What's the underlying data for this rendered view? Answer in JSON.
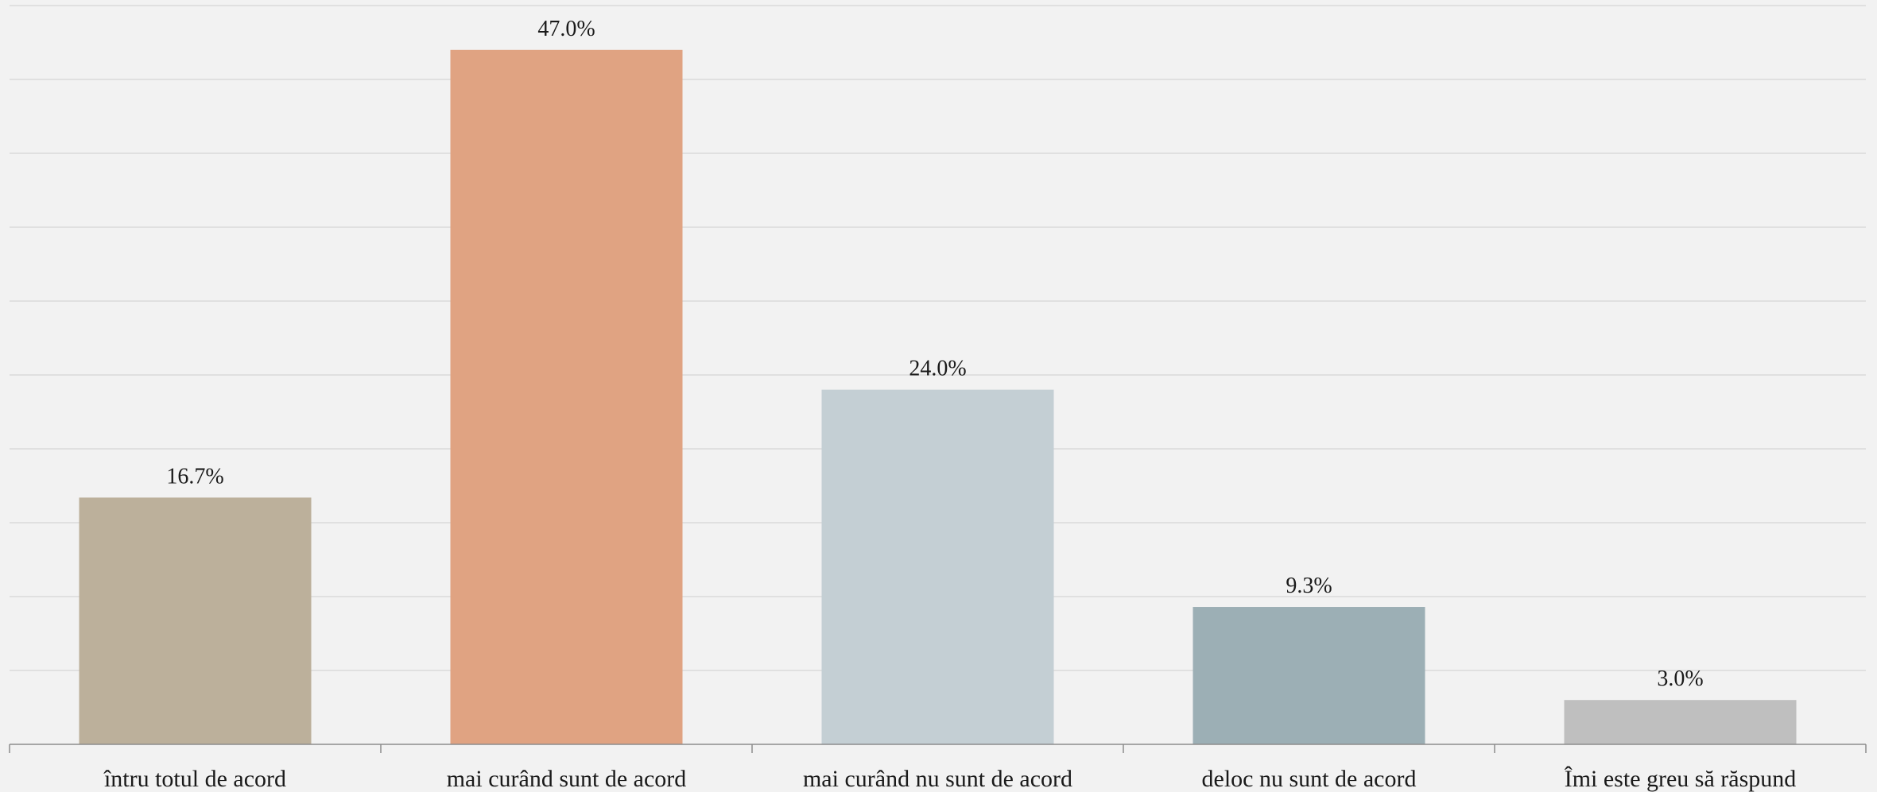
{
  "chart_data": {
    "type": "bar",
    "categories": [
      "întru totul de acord",
      "mai curând sunt de acord",
      "mai curând nu sunt de acord",
      "deloc nu sunt de acord",
      "Îmi este greu să răspund"
    ],
    "values": [
      16.7,
      47.0,
      24.0,
      9.3,
      3.0
    ],
    "data_labels": [
      "16.7%",
      "47.0%",
      "24.0%",
      "9.3%",
      "3.0%"
    ],
    "colors": [
      "#bcb09b",
      "#e0a382",
      "#c4cfd4",
      "#9cafb5",
      "#bfbfbf"
    ],
    "title": "",
    "xlabel": "",
    "ylabel": "",
    "ylim": [
      0,
      50
    ],
    "grid": true,
    "legend": "none"
  }
}
